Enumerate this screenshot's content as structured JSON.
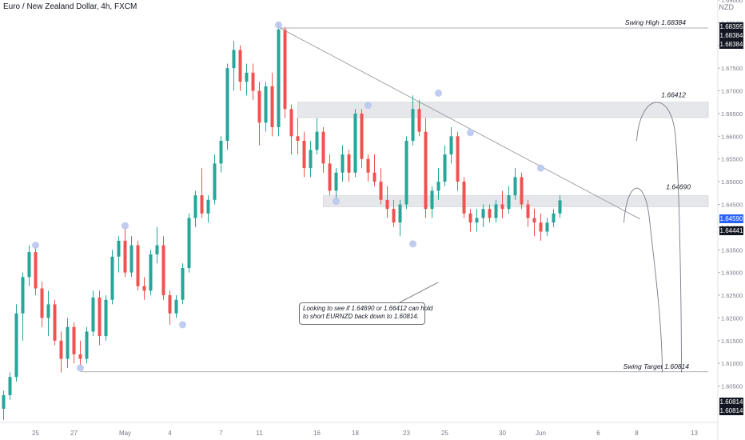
{
  "header": {
    "title": "Euro / New Zealand Dollar, 4h, FXCM",
    "currency": "NZD"
  },
  "colors": {
    "up": "#26a69a",
    "down": "#ef5350",
    "zone": "#e6e7ea",
    "trend": "#9598a1",
    "pivot": "#b9c7ee",
    "current_tag": "#2962ff"
  },
  "annotations": {
    "swing_high": "Swing High 1.68384",
    "zone_high_label": "1.66412",
    "zone_low_label": "1.64690",
    "swing_target": "Swing Target 1.60814",
    "note_line1": "Looking to see if 1.64690 or 1.66412 can hold",
    "note_line2": "to short EURNZD back down to 1.60814."
  },
  "price_tags": {
    "high_a": "1.68395",
    "high_b": "1.68384",
    "high_c": "1.68384",
    "current": "1.64590",
    "last": "1.64441",
    "target_a": "1.60814",
    "target_b": "1.60814"
  },
  "chart_data": {
    "type": "candlestick",
    "title": "Euro / New Zealand Dollar, 4h, FXCM",
    "ylabel": "NZD",
    "ylim": [
      1.597,
      1.69
    ],
    "y_ticks": [
      "1.69000",
      "1.68500",
      "1.68000",
      "1.67500",
      "1.67000",
      "1.66500",
      "1.66000",
      "1.65500",
      "1.65000",
      "1.64500",
      "1.64000",
      "1.63500",
      "1.63000",
      "1.62500",
      "1.62000",
      "1.61500",
      "1.61000",
      "1.60500"
    ],
    "x_ticks": [
      "25",
      "27",
      "May",
      "4",
      "7",
      "11",
      "16",
      "18",
      "23",
      "25",
      "30",
      "Jun",
      "6",
      "8",
      "13"
    ],
    "x_tick_index": [
      5,
      11,
      19,
      26,
      34,
      40,
      49,
      55,
      63,
      69,
      78,
      84,
      93,
      99,
      108
    ],
    "levels": {
      "swing_high": 1.68384,
      "resistance_zone": [
        1.66412,
        1.6675
      ],
      "support_zone": [
        1.6445,
        1.6469
      ],
      "swing_target": 1.60814
    },
    "trendline": {
      "from": [
        43,
        1.684
      ],
      "to": [
        96,
        1.6444
      ]
    },
    "projections": [
      {
        "from": [
          99,
          1.659
        ],
        "peak": [
          103,
          1.666
        ],
        "to": [
          106,
          1.608
        ]
      },
      {
        "from": [
          97,
          1.641
        ],
        "peak": [
          99,
          1.647
        ],
        "to": [
          103,
          1.608
        ]
      }
    ],
    "pivots": [
      [
        5,
        1.636
      ],
      [
        12,
        1.609
      ],
      [
        19,
        1.6403
      ],
      [
        28,
        1.6185
      ],
      [
        43,
        1.6845
      ],
      [
        57,
        1.6668
      ],
      [
        52,
        1.6457
      ],
      [
        64,
        1.6363
      ],
      [
        68,
        1.6695
      ],
      [
        73,
        1.6608
      ],
      [
        84,
        1.653
      ]
    ],
    "series": [
      {
        "name": "EURNZD",
        "ohlc": [
          [
            1.6,
            1.604,
            1.5975,
            1.603
          ],
          [
            1.603,
            1.608,
            1.602,
            1.607
          ],
          [
            1.607,
            1.623,
            1.606,
            1.621
          ],
          [
            1.621,
            1.63,
            1.615,
            1.629
          ],
          [
            1.629,
            1.636,
            1.627,
            1.6345
          ],
          [
            1.6345,
            1.636,
            1.625,
            1.6265
          ],
          [
            1.6265,
            1.628,
            1.618,
            1.62
          ],
          [
            1.62,
            1.626,
            1.616,
            1.623
          ],
          [
            1.623,
            1.624,
            1.614,
            1.615
          ],
          [
            1.615,
            1.617,
            1.608,
            1.611
          ],
          [
            1.611,
            1.62,
            1.609,
            1.618
          ],
          [
            1.618,
            1.619,
            1.61,
            1.612
          ],
          [
            1.612,
            1.615,
            1.609,
            1.611
          ],
          [
            1.611,
            1.618,
            1.61,
            1.617
          ],
          [
            1.617,
            1.626,
            1.616,
            1.6245
          ],
          [
            1.6245,
            1.626,
            1.614,
            1.616
          ],
          [
            1.616,
            1.625,
            1.615,
            1.624
          ],
          [
            1.624,
            1.635,
            1.623,
            1.6335
          ],
          [
            1.6335,
            1.638,
            1.63,
            1.637
          ],
          [
            1.637,
            1.64,
            1.629,
            1.63
          ],
          [
            1.63,
            1.638,
            1.629,
            1.636
          ],
          [
            1.636,
            1.637,
            1.626,
            1.627
          ],
          [
            1.627,
            1.629,
            1.624,
            1.626
          ],
          [
            1.626,
            1.635,
            1.625,
            1.634
          ],
          [
            1.634,
            1.64,
            1.632,
            1.636
          ],
          [
            1.636,
            1.638,
            1.624,
            1.625
          ],
          [
            1.625,
            1.626,
            1.6185,
            1.621
          ],
          [
            1.621,
            1.625,
            1.62,
            1.624
          ],
          [
            1.624,
            1.632,
            1.623,
            1.631
          ],
          [
            1.631,
            1.643,
            1.63,
            1.642
          ],
          [
            1.642,
            1.648,
            1.64,
            1.647
          ],
          [
            1.647,
            1.653,
            1.642,
            1.643
          ],
          [
            1.643,
            1.647,
            1.641,
            1.646
          ],
          [
            1.646,
            1.656,
            1.645,
            1.654
          ],
          [
            1.654,
            1.66,
            1.652,
            1.659
          ],
          [
            1.659,
            1.676,
            1.657,
            1.675
          ],
          [
            1.675,
            1.681,
            1.67,
            1.679
          ],
          [
            1.679,
            1.68,
            1.67,
            1.672
          ],
          [
            1.672,
            1.676,
            1.669,
            1.674
          ],
          [
            1.674,
            1.676,
            1.668,
            1.67
          ],
          [
            1.67,
            1.672,
            1.658,
            1.663
          ],
          [
            1.663,
            1.672,
            1.661,
            1.671
          ],
          [
            1.671,
            1.674,
            1.66,
            1.662
          ],
          [
            1.662,
            1.685,
            1.66,
            1.6835
          ],
          [
            1.6835,
            1.684,
            1.664,
            1.666
          ],
          [
            1.666,
            1.667,
            1.656,
            1.66
          ],
          [
            1.66,
            1.664,
            1.656,
            1.659
          ],
          [
            1.659,
            1.661,
            1.651,
            1.653
          ],
          [
            1.653,
            1.659,
            1.651,
            1.657
          ],
          [
            1.657,
            1.664,
            1.656,
            1.661
          ],
          [
            1.661,
            1.662,
            1.652,
            1.654
          ],
          [
            1.654,
            1.656,
            1.647,
            1.648
          ],
          [
            1.648,
            1.653,
            1.646,
            1.652
          ],
          [
            1.652,
            1.658,
            1.65,
            1.656
          ],
          [
            1.656,
            1.657,
            1.65,
            1.652
          ],
          [
            1.652,
            1.666,
            1.651,
            1.665
          ],
          [
            1.665,
            1.666,
            1.653,
            1.655
          ],
          [
            1.655,
            1.656,
            1.65,
            1.652
          ],
          [
            1.652,
            1.656,
            1.649,
            1.65
          ],
          [
            1.65,
            1.653,
            1.645,
            1.646
          ],
          [
            1.646,
            1.649,
            1.642,
            1.644
          ],
          [
            1.644,
            1.646,
            1.64,
            1.641
          ],
          [
            1.641,
            1.646,
            1.638,
            1.645
          ],
          [
            1.645,
            1.66,
            1.644,
            1.659
          ],
          [
            1.659,
            1.669,
            1.658,
            1.666
          ],
          [
            1.666,
            1.668,
            1.66,
            1.661
          ],
          [
            1.661,
            1.664,
            1.642,
            1.644
          ],
          [
            1.644,
            1.649,
            1.642,
            1.648
          ],
          [
            1.648,
            1.653,
            1.646,
            1.65
          ],
          [
            1.65,
            1.658,
            1.649,
            1.656
          ],
          [
            1.656,
            1.662,
            1.654,
            1.66
          ],
          [
            1.66,
            1.661,
            1.648,
            1.65
          ],
          [
            1.65,
            1.651,
            1.642,
            1.643
          ],
          [
            1.643,
            1.644,
            1.639,
            1.641
          ],
          [
            1.641,
            1.644,
            1.639,
            1.642
          ],
          [
            1.642,
            1.645,
            1.64,
            1.644
          ],
          [
            1.644,
            1.645,
            1.641,
            1.642
          ],
          [
            1.642,
            1.646,
            1.641,
            1.645
          ],
          [
            1.645,
            1.648,
            1.642,
            1.644
          ],
          [
            1.644,
            1.649,
            1.643,
            1.647
          ],
          [
            1.647,
            1.653,
            1.646,
            1.651
          ],
          [
            1.651,
            1.652,
            1.644,
            1.645
          ],
          [
            1.645,
            1.646,
            1.64,
            1.642
          ],
          [
            1.642,
            1.644,
            1.638,
            1.641
          ],
          [
            1.641,
            1.643,
            1.637,
            1.639
          ],
          [
            1.639,
            1.642,
            1.638,
            1.641
          ],
          [
            1.641,
            1.644,
            1.64,
            1.643
          ],
          [
            1.643,
            1.647,
            1.642,
            1.6459
          ]
        ]
      }
    ]
  }
}
